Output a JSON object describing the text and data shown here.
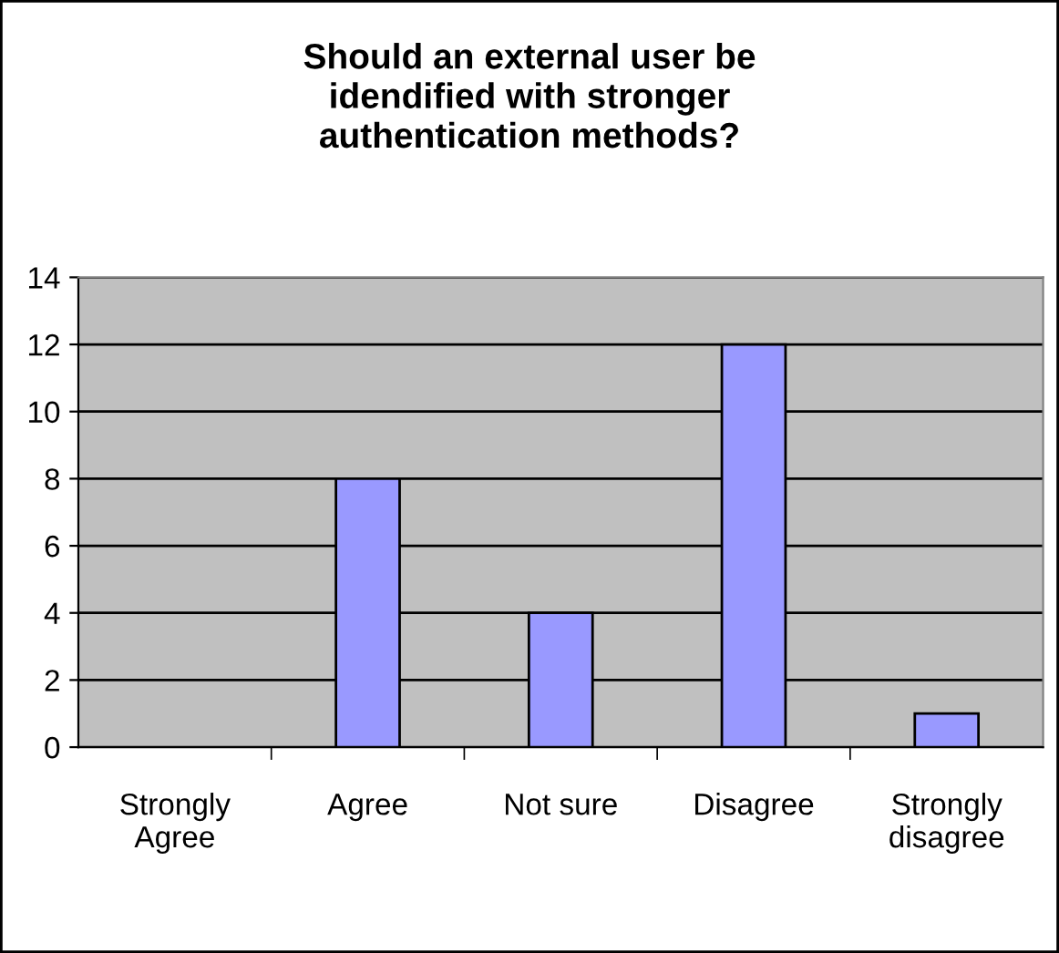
{
  "chart_data": {
    "type": "bar",
    "title": "Should an external user be\nidendified with stronger\nauthentication methods?",
    "categories": [
      "Strongly\nAgree",
      "Agree",
      "Not sure",
      "Disagree",
      "Strongly\ndisagree"
    ],
    "values": [
      0,
      8,
      4,
      12,
      1
    ],
    "color": "#9999ff",
    "ylim": [
      0,
      14
    ],
    "yticks": [
      0,
      2,
      4,
      6,
      8,
      10,
      12,
      14
    ],
    "grid": "y",
    "legend": false
  }
}
